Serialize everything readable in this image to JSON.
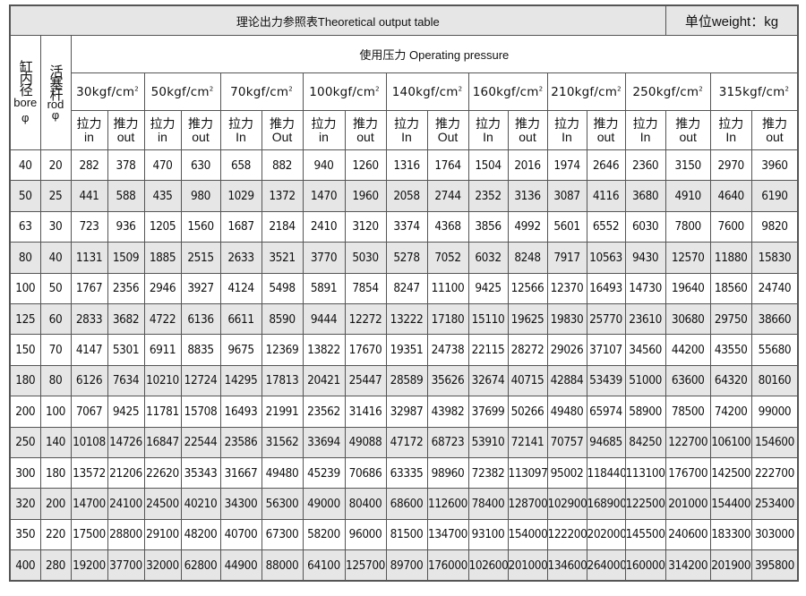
{
  "title": "理论出力参照表Theoretical  output table",
  "unit": "单位weight：kg",
  "bore_header": {
    "cn": "缸内径",
    "en": "bore",
    "sym": "φ"
  },
  "rod_header": {
    "cn": "活塞杆",
    "en": "rod",
    "sym": "φ"
  },
  "pressure_header": "使用压力  Operating pressure",
  "pressures": [
    {
      "label": "30kgf/cm",
      "sup": "2",
      "in": [
        "拉力",
        "in"
      ],
      "out": [
        "推力",
        "out"
      ]
    },
    {
      "label": "50kgf/cm",
      "sup": "2",
      "in": [
        "拉力",
        "in"
      ],
      "out": [
        "推力",
        "out"
      ]
    },
    {
      "label": "70kgf/cm",
      "sup": "2",
      "in": [
        "拉力",
        "In"
      ],
      "out": [
        "推力",
        "Out"
      ]
    },
    {
      "label": "100kgf/cm",
      "sup": "2",
      "in": [
        "拉力",
        "in"
      ],
      "out": [
        "推力",
        "out"
      ]
    },
    {
      "label": "140kgf/cm",
      "sup": "2",
      "in": [
        "拉力",
        "In"
      ],
      "out": [
        "推力",
        "Out"
      ]
    },
    {
      "label": "160kgf/cm",
      "sup": "2",
      "in": [
        "拉力",
        "In"
      ],
      "out": [
        "推力",
        "out"
      ]
    },
    {
      "label": "210kgf/cm",
      "sup": "2",
      "in": [
        "拉力",
        "In"
      ],
      "out": [
        "推力",
        "out"
      ]
    },
    {
      "label": "250kgf/cm",
      "sup": "2",
      "in": [
        "拉力",
        "In"
      ],
      "out": [
        "推力",
        "out"
      ]
    },
    {
      "label": "315kgf/cm",
      "sup": "2",
      "in": [
        "拉力",
        "In"
      ],
      "out": [
        "推力",
        "out"
      ]
    }
  ],
  "rows": [
    [
      "40",
      "20",
      "282",
      "378",
      "470",
      "630",
      "658",
      "882",
      "940",
      "1260",
      "1316",
      "1764",
      "1504",
      "2016",
      "1974",
      "2646",
      "2360",
      "3150",
      "2970",
      "3960"
    ],
    [
      "50",
      "25",
      "441",
      "588",
      "435",
      "980",
      "1029",
      "1372",
      "1470",
      "1960",
      "2058",
      "2744",
      "2352",
      "3136",
      "3087",
      "4116",
      "3680",
      "4910",
      "4640",
      "6190"
    ],
    [
      "63",
      "30",
      "723",
      "936",
      "1205",
      "1560",
      "1687",
      "2184",
      "2410",
      "3120",
      "3374",
      "4368",
      "3856",
      "4992",
      "5601",
      "6552",
      "6030",
      "7800",
      "7600",
      "9820"
    ],
    [
      "80",
      "40",
      "1131",
      "1509",
      "1885",
      "2515",
      "2633",
      "3521",
      "3770",
      "5030",
      "5278",
      "7052",
      "6032",
      "8248",
      "7917",
      "10563",
      "9430",
      "12570",
      "11880",
      "15830"
    ],
    [
      "100",
      "50",
      "1767",
      "2356",
      "2946",
      "3927",
      "4124",
      "5498",
      "5891",
      "7854",
      "8247",
      "11100",
      "9425",
      "12566",
      "12370",
      "16493",
      "14730",
      "19640",
      "18560",
      "24740"
    ],
    [
      "125",
      "60",
      "2833",
      "3682",
      "4722",
      "6136",
      "6611",
      "8590",
      "9444",
      "12272",
      "13222",
      "17180",
      "15110",
      "19625",
      "19830",
      "25770",
      "23610",
      "30680",
      "29750",
      "38660"
    ],
    [
      "150",
      "70",
      "4147",
      "5301",
      "6911",
      "8835",
      "9675",
      "12369",
      "13822",
      "17670",
      "19351",
      "24738",
      "22115",
      "28272",
      "29026",
      "37107",
      "34560",
      "44200",
      "43550",
      "55680"
    ],
    [
      "180",
      "80",
      "6126",
      "7634",
      "10210",
      "12724",
      "14295",
      "17813",
      "20421",
      "25447",
      "28589",
      "35626",
      "32674",
      "40715",
      "42884",
      "53439",
      "51000",
      "63600",
      "64320",
      "80160"
    ],
    [
      "200",
      "100",
      "7067",
      "9425",
      "11781",
      "15708",
      "16493",
      "21991",
      "23562",
      "31416",
      "32987",
      "43982",
      "37699",
      "50266",
      "49480",
      "65974",
      "58900",
      "78500",
      "74200",
      "99000"
    ],
    [
      "250",
      "140",
      "10108",
      "14726",
      "16847",
      "22544",
      "23586",
      "31562",
      "33694",
      "49088",
      "47172",
      "68723",
      "53910",
      "72141",
      "70757",
      "94685",
      "84250",
      "122700",
      "106100",
      "154600"
    ],
    [
      "300",
      "180",
      "13572",
      "21206",
      "22620",
      "35343",
      "31667",
      "49480",
      "45239",
      "70686",
      "63335",
      "98960",
      "72382",
      "113097",
      "95002",
      "118440",
      "113100",
      "176700",
      "142500",
      "222700"
    ],
    [
      "320",
      "200",
      "14700",
      "24100",
      "24500",
      "40210",
      "34300",
      "56300",
      "49000",
      "80400",
      "68600",
      "112600",
      "78400",
      "128700",
      "102900",
      "168900",
      "122500",
      "201000",
      "154400",
      "253400"
    ],
    [
      "350",
      "220",
      "17500",
      "28800",
      "29100",
      "48200",
      "40700",
      "67300",
      "58200",
      "96000",
      "81500",
      "134700",
      "93100",
      "154000",
      "122200",
      "202000",
      "145500",
      "240600",
      "183300",
      "303000"
    ],
    [
      "400",
      "280",
      "19200",
      "37700",
      "32000",
      "62800",
      "44900",
      "88000",
      "64100",
      "125700",
      "89700",
      "176000",
      "102600",
      "201000",
      "134600",
      "264000",
      "160000",
      "314200",
      "201900",
      "395800"
    ]
  ],
  "colors": {
    "border": "#555555",
    "header_bg": "#e6e6e6",
    "stripe_bg": "#e6e6e6"
  }
}
